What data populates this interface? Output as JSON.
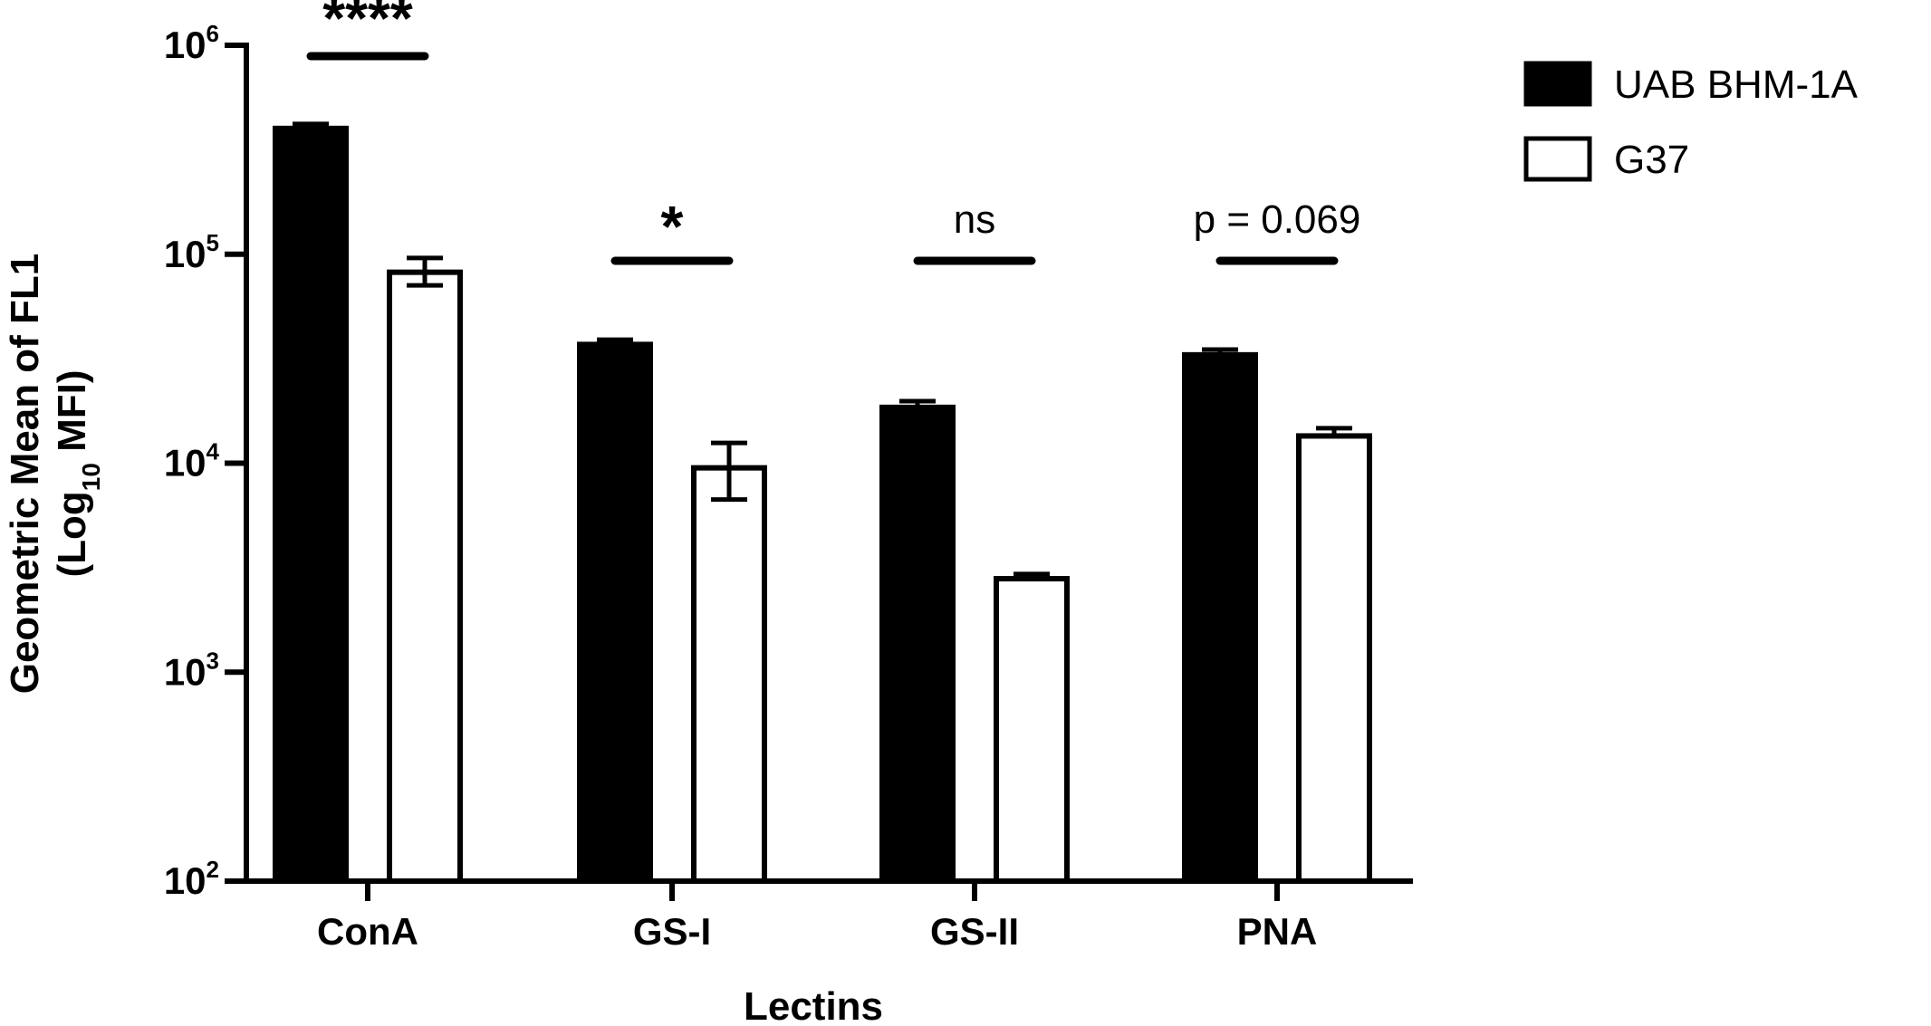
{
  "chart_data": {
    "type": "bar",
    "scale": "log10",
    "ylim": [
      100,
      1000000
    ],
    "yticks": [
      {
        "base": "10",
        "exp": "2",
        "value": 100
      },
      {
        "base": "10",
        "exp": "3",
        "value": 1000
      },
      {
        "base": "10",
        "exp": "4",
        "value": 10000
      },
      {
        "base": "10",
        "exp": "5",
        "value": 100000
      },
      {
        "base": "10",
        "exp": "6",
        "value": 1000000
      }
    ],
    "ylabel_line1": "Geometric Mean of FL1",
    "ylabel_line2": {
      "pre": "(Log",
      "sub": "10",
      "post": " MFI)"
    },
    "xlabel": "Lectins",
    "categories": [
      "ConA",
      "GS-I",
      "GS-II",
      "PNA"
    ],
    "series": [
      {
        "name": "UAB BHM-1A",
        "fill": "#000000",
        "values": [
          400000,
          37000,
          18500,
          33000
        ],
        "error_upper": [
          420000,
          39000,
          19800,
          35000
        ],
        "error_lower": [
          400000,
          37000,
          18500,
          33000
        ]
      },
      {
        "name": "G37",
        "fill": "#ffffff",
        "values": [
          82000,
          9500,
          2800,
          13500
        ],
        "error_upper": [
          96000,
          12500,
          2950,
          14700
        ],
        "error_lower": [
          71000,
          6700,
          2800,
          13500
        ]
      }
    ],
    "significance": [
      "****",
      "*",
      "ns",
      "p = 0.069"
    ],
    "legend_position": "top-right",
    "grid": false
  }
}
